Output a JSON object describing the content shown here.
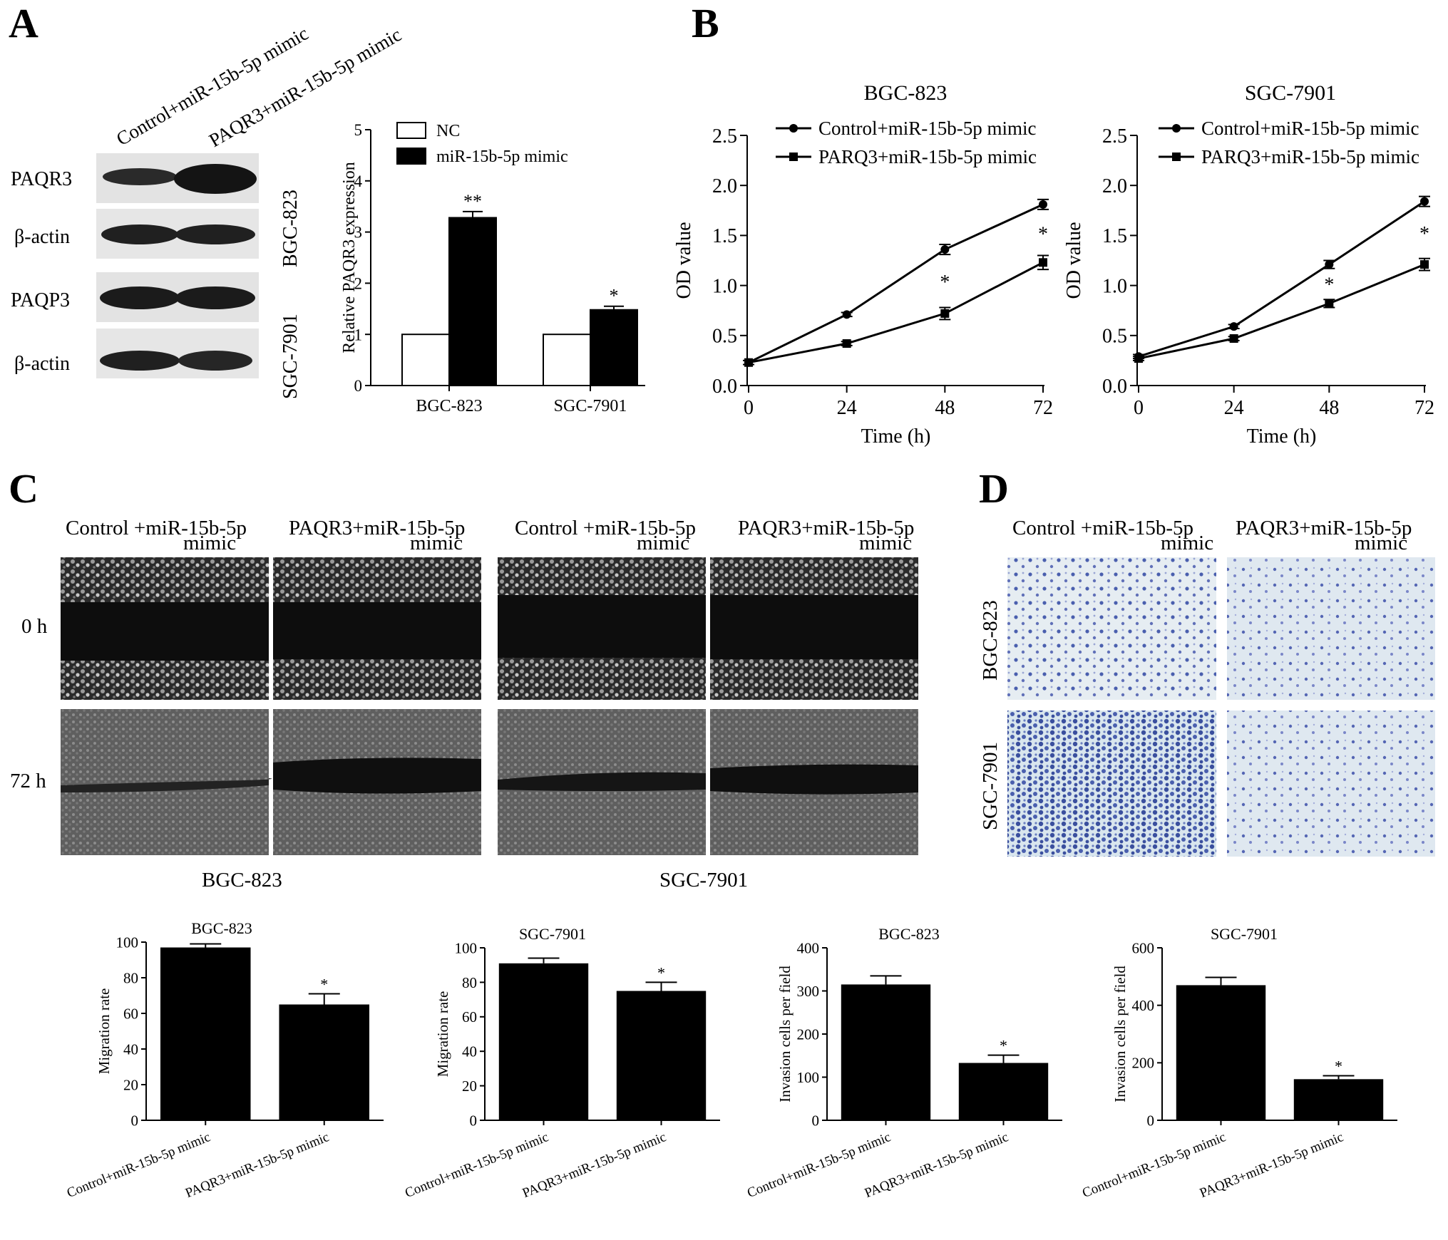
{
  "panels": {
    "A": {
      "letter": "A",
      "blot": {
        "column_labels": [
          "Control+miR-15b-5p mimic",
          "PAQR3+miR-15b-5p mimic"
        ],
        "row_labels": [
          "PAQR3",
          "β-actin",
          "PAQP3",
          "β-actin"
        ],
        "cell_line_labels": [
          "BGC-823",
          "SGC-7901"
        ]
      }
    },
    "B": {
      "letter": "B"
    },
    "C": {
      "letter": "C",
      "column_headers": [
        {
          "line1": "Control +miR-15b-5p",
          "line2": "mimic"
        },
        {
          "line1": "PAQR3+miR-15b-5p",
          "line2": "mimic"
        },
        {
          "line1": "Control +miR-15b-5p",
          "line2": "mimic"
        },
        {
          "line1": "PAQR3+miR-15b-5p",
          "line2": "mimic"
        }
      ],
      "row_labels": [
        "0 h",
        "72 h"
      ],
      "group_labels": [
        "BGC-823",
        "SGC-7901"
      ]
    },
    "D": {
      "letter": "D",
      "column_headers": [
        {
          "line1": "Control +miR-15b-5p",
          "line2": "mimic"
        },
        {
          "line1": "PAQR3+miR-15b-5p",
          "line2": "mimic"
        }
      ],
      "row_labels": [
        "BGC-823",
        "SGC-7901"
      ]
    }
  },
  "chart_data": [
    {
      "id": "A-bar",
      "type": "bar",
      "categories": [
        "BGC-823",
        "SGC-7901"
      ],
      "series": [
        {
          "name": "NC",
          "values": [
            1,
            1
          ],
          "errors": [
            0,
            0
          ],
          "color": "#ffffff"
        },
        {
          "name": "miR-15b-5p mimic",
          "values": [
            3.28,
            1.48
          ],
          "errors": [
            0.12,
            0.07
          ],
          "color": "#000000"
        }
      ],
      "significance": [
        "**",
        "*"
      ],
      "ylabel": "Relative PAQR3 expression",
      "ylim": [
        0,
        5
      ],
      "yticks": [
        "0",
        "1",
        "2",
        "3",
        "4",
        "5"
      ],
      "legend": "top-left"
    },
    {
      "id": "B-BGC",
      "type": "line",
      "title": "BGC-823",
      "x": [
        0,
        24,
        48,
        72
      ],
      "xticks": [
        "0",
        "24",
        "48",
        "72"
      ],
      "series": [
        {
          "name": "Control+miR-15b-5p mimic",
          "marker": "circle",
          "values": [
            0.23,
            0.71,
            1.36,
            1.81
          ],
          "errors": [
            0.02,
            0.02,
            0.05,
            0.05
          ]
        },
        {
          "name": "PARQ3+miR-15b-5p mimic",
          "marker": "square",
          "values": [
            0.23,
            0.42,
            0.72,
            1.23
          ],
          "errors": [
            0.02,
            0.02,
            0.06,
            0.07
          ]
        }
      ],
      "significance": [
        "",
        "",
        "*",
        "*"
      ],
      "xlabel": "Time (h)",
      "ylabel": "OD value",
      "ylim": [
        0,
        2.5
      ],
      "yticks": [
        "0.0",
        "0.5",
        "1.0",
        "1.5",
        "2.0",
        "2.5"
      ]
    },
    {
      "id": "B-SGC",
      "type": "line",
      "title": "SGC-7901",
      "x": [
        0,
        24,
        48,
        72
      ],
      "xticks": [
        "0",
        "24",
        "48",
        "72"
      ],
      "series": [
        {
          "name": "Control+miR-15b-5p mimic",
          "marker": "circle",
          "values": [
            0.29,
            0.59,
            1.21,
            1.84
          ],
          "errors": [
            0.02,
            0.02,
            0.04,
            0.05
          ]
        },
        {
          "name": "PARQ3+miR-15b-5p mimic",
          "marker": "square",
          "values": [
            0.27,
            0.47,
            0.82,
            1.21
          ],
          "errors": [
            0.02,
            0.02,
            0.04,
            0.06
          ]
        }
      ],
      "significance": [
        "",
        "",
        "*",
        "*"
      ],
      "xlabel": "Time (h)",
      "ylabel": "OD value",
      "ylim": [
        0,
        2.5
      ],
      "yticks": [
        "0.0",
        "0.5",
        "1.0",
        "1.5",
        "2.0",
        "2.5"
      ]
    },
    {
      "id": "C-BGC",
      "type": "bar",
      "title": "BGC-823",
      "categories": [
        "Control+miR-15b-5p mimic",
        "PAQR3+miR-15b-5p mimic"
      ],
      "values": [
        97,
        65
      ],
      "errors": [
        2,
        6
      ],
      "significance": [
        "",
        "*"
      ],
      "ylabel": "Migration rate",
      "ylim": [
        0,
        100
      ],
      "yticks": [
        "0",
        "20",
        "40",
        "60",
        "80",
        "100"
      ]
    },
    {
      "id": "C-SGC",
      "type": "bar",
      "title": "SGC-7901",
      "categories": [
        "Control+miR-15b-5p mimic",
        "PAQR3+miR-15b-5p mimic"
      ],
      "values": [
        91,
        75
      ],
      "errors": [
        3,
        5
      ],
      "significance": [
        "",
        "*"
      ],
      "ylabel": "Migration rate",
      "ylim": [
        0,
        100
      ],
      "yticks": [
        "0",
        "20",
        "40",
        "60",
        "80",
        "100"
      ]
    },
    {
      "id": "D-BGC",
      "type": "bar",
      "title": "BGC-823",
      "categories": [
        "Control+miR-15b-5p mimic",
        "PAQR3+miR-15b-5p mimic"
      ],
      "values": [
        315,
        133
      ],
      "errors": [
        20,
        18
      ],
      "significance": [
        "",
        "*"
      ],
      "ylabel": "Invasion cells per field",
      "ylim": [
        0,
        400
      ],
      "yticks": [
        "0",
        "100",
        "200",
        "300",
        "400"
      ]
    },
    {
      "id": "D-SGC",
      "type": "bar",
      "title": "SGC-7901",
      "categories": [
        "Control+miR-15b-5p mimic",
        "PAQR3+miR-15b-5p mimic"
      ],
      "values": [
        470,
        143
      ],
      "errors": [
        27,
        12
      ],
      "significance": [
        "",
        "*"
      ],
      "ylabel": "Invasion cells per field",
      "ylim": [
        0,
        600
      ],
      "yticks": [
        "0",
        "200",
        "400",
        "600"
      ]
    }
  ]
}
